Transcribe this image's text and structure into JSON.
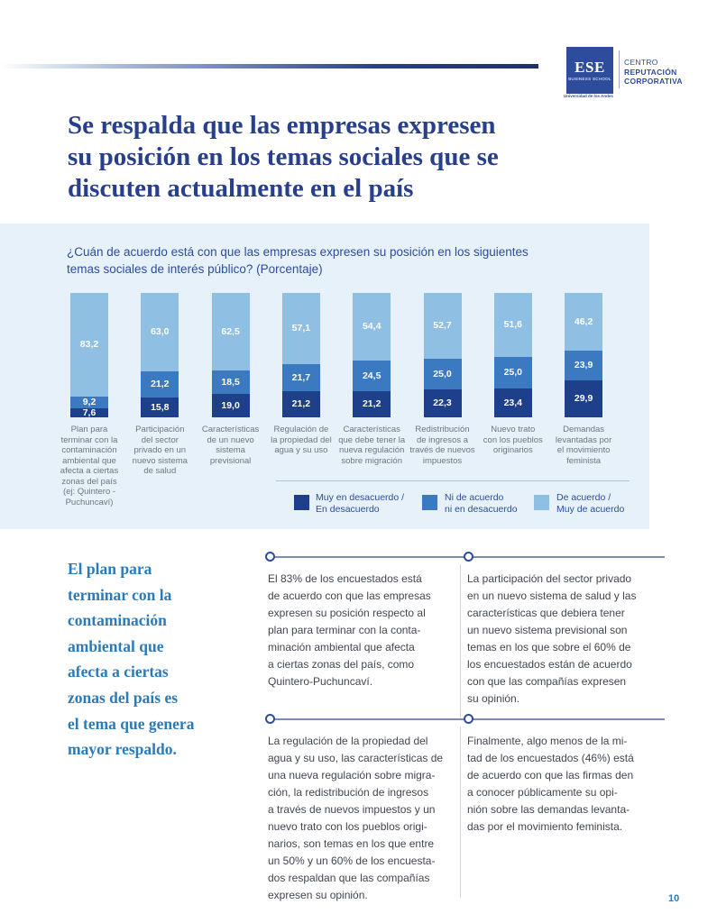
{
  "header": {
    "logo": {
      "name": "ESE",
      "sub": "BUSINESS SCHOOL",
      "university": "Universidad de los Andes"
    },
    "centro": {
      "line1": "CENTRO",
      "line2": "REPUTACIÓN",
      "line3": "CORPORATIVA"
    }
  },
  "title": {
    "line1": "Se respalda que las empresas expresen",
    "line2": "su posición en los temas sociales que se",
    "line3": "discuten actualmente en el país"
  },
  "chart_question": {
    "line1": "¿Cuán de acuerdo está con que las empresas expresen su posición en los siguientes",
    "line2": "temas sociales de interés público? (Porcentaje)"
  },
  "chart_data": {
    "type": "bar",
    "stacked": true,
    "categories": [
      [
        "Plan para",
        "terminar con la",
        "contaminación",
        "ambiental que",
        "afecta a ciertas",
        "zonas del país",
        "(ej: Quintero -",
        "Puchuncaví)"
      ],
      [
        "Participación",
        "del sector",
        "privado en un",
        "nuevo sistema",
        "de salud"
      ],
      [
        "Características",
        "de un nuevo",
        "sistema",
        "previsional"
      ],
      [
        "Regulación de",
        "la propiedad del",
        "agua y su uso"
      ],
      [
        "Características",
        "que debe tener la",
        "nueva regulación",
        "sobre migración"
      ],
      [
        "Redistribución",
        "de ingresos a",
        "través de nuevos",
        "impuestos"
      ],
      [
        "Nuevo trato",
        "con los pueblos",
        "originarios"
      ],
      [
        "Demandas",
        "levantadas por",
        "el movimiento",
        "feminista"
      ]
    ],
    "series": [
      {
        "name": "Muy en desacuerdo / En desacuerdo",
        "values": [
          7.6,
          15.8,
          19.0,
          21.2,
          21.2,
          22.3,
          23.4,
          29.9
        ],
        "labels": [
          "7,6",
          "15,8",
          "19,0",
          "21,2",
          "21,2",
          "22,3",
          "23,4",
          "29,9"
        ]
      },
      {
        "name": "Ni de acuerdo ni en desacuerdo",
        "values": [
          9.2,
          21.2,
          18.5,
          21.7,
          24.5,
          25.0,
          25.0,
          23.9
        ],
        "labels": [
          "9,2",
          "21,2",
          "18,5",
          "21,7",
          "24,5",
          "25,0",
          "25,0",
          "23,9"
        ]
      },
      {
        "name": "De acuerdo / Muy de acuerdo",
        "values": [
          83.2,
          63.0,
          62.5,
          57.1,
          54.4,
          52.7,
          51.6,
          46.2
        ],
        "labels": [
          "83,2",
          "63,0",
          "62,5",
          "57,1",
          "54,4",
          "52,7",
          "51,6",
          "46,2"
        ]
      }
    ],
    "colors": [
      "#1e3f8a",
      "#3b7ac0",
      "#8fbfe3"
    ],
    "ylim": [
      0,
      100
    ],
    "legend_position": "bottom-right"
  },
  "legend": [
    {
      "line1": "Muy en desacuerdo /",
      "line2": "En desacuerdo",
      "color": "#1e3f8a"
    },
    {
      "line1": "Ni de acuerdo",
      "line2": "ni en desacuerdo",
      "color": "#3b7ac0"
    },
    {
      "line1": "De acuerdo /",
      "line2": "Muy de acuerdo",
      "color": "#8fbfe3"
    }
  ],
  "pull_quote": [
    "El plan para",
    "terminar con la",
    "contaminación",
    "ambiental que",
    "afecta a ciertas",
    "zonas del país es",
    "el tema que genera",
    "mayor respaldo."
  ],
  "paragraphs": {
    "p1": [
      "El 83% de los encuestados está",
      "de acuerdo con que las empresas",
      "expresen su posición respecto al",
      "plan para terminar con la conta-",
      "minación ambiental que afecta",
      "a ciertas zonas del país, como",
      "Quintero-Puchuncaví."
    ],
    "p2": [
      "La participación del sector privado",
      "en un nuevo sistema de salud y las",
      "características que debiera tener",
      "un nuevo sistema previsional son",
      "temas en los que sobre el 60% de",
      "los encuestados están de acuerdo",
      "con que las compañías expresen",
      "su opinión."
    ],
    "p3": [
      "La regulación de la propiedad del",
      "agua y su uso, las características de",
      "una nueva regulación sobre migra-",
      "ción, la redistribución de ingresos",
      "a través de nuevos impuestos y un",
      "nuevo trato con los pueblos origi-",
      "narios, son temas en los que entre",
      "un 50% y un 60% de los encuesta-",
      "dos respaldan que las compañías",
      "expresen su opinión."
    ],
    "p4": [
      "Finalmente, algo menos de la mi-",
      "tad de los encuestados (46%) está",
      "de acuerdo con que las firmas den",
      "a conocer públicamente su opi-",
      "nión sobre las demandas levanta-",
      "das por el movimiento feminista."
    ]
  },
  "page_number": "10"
}
